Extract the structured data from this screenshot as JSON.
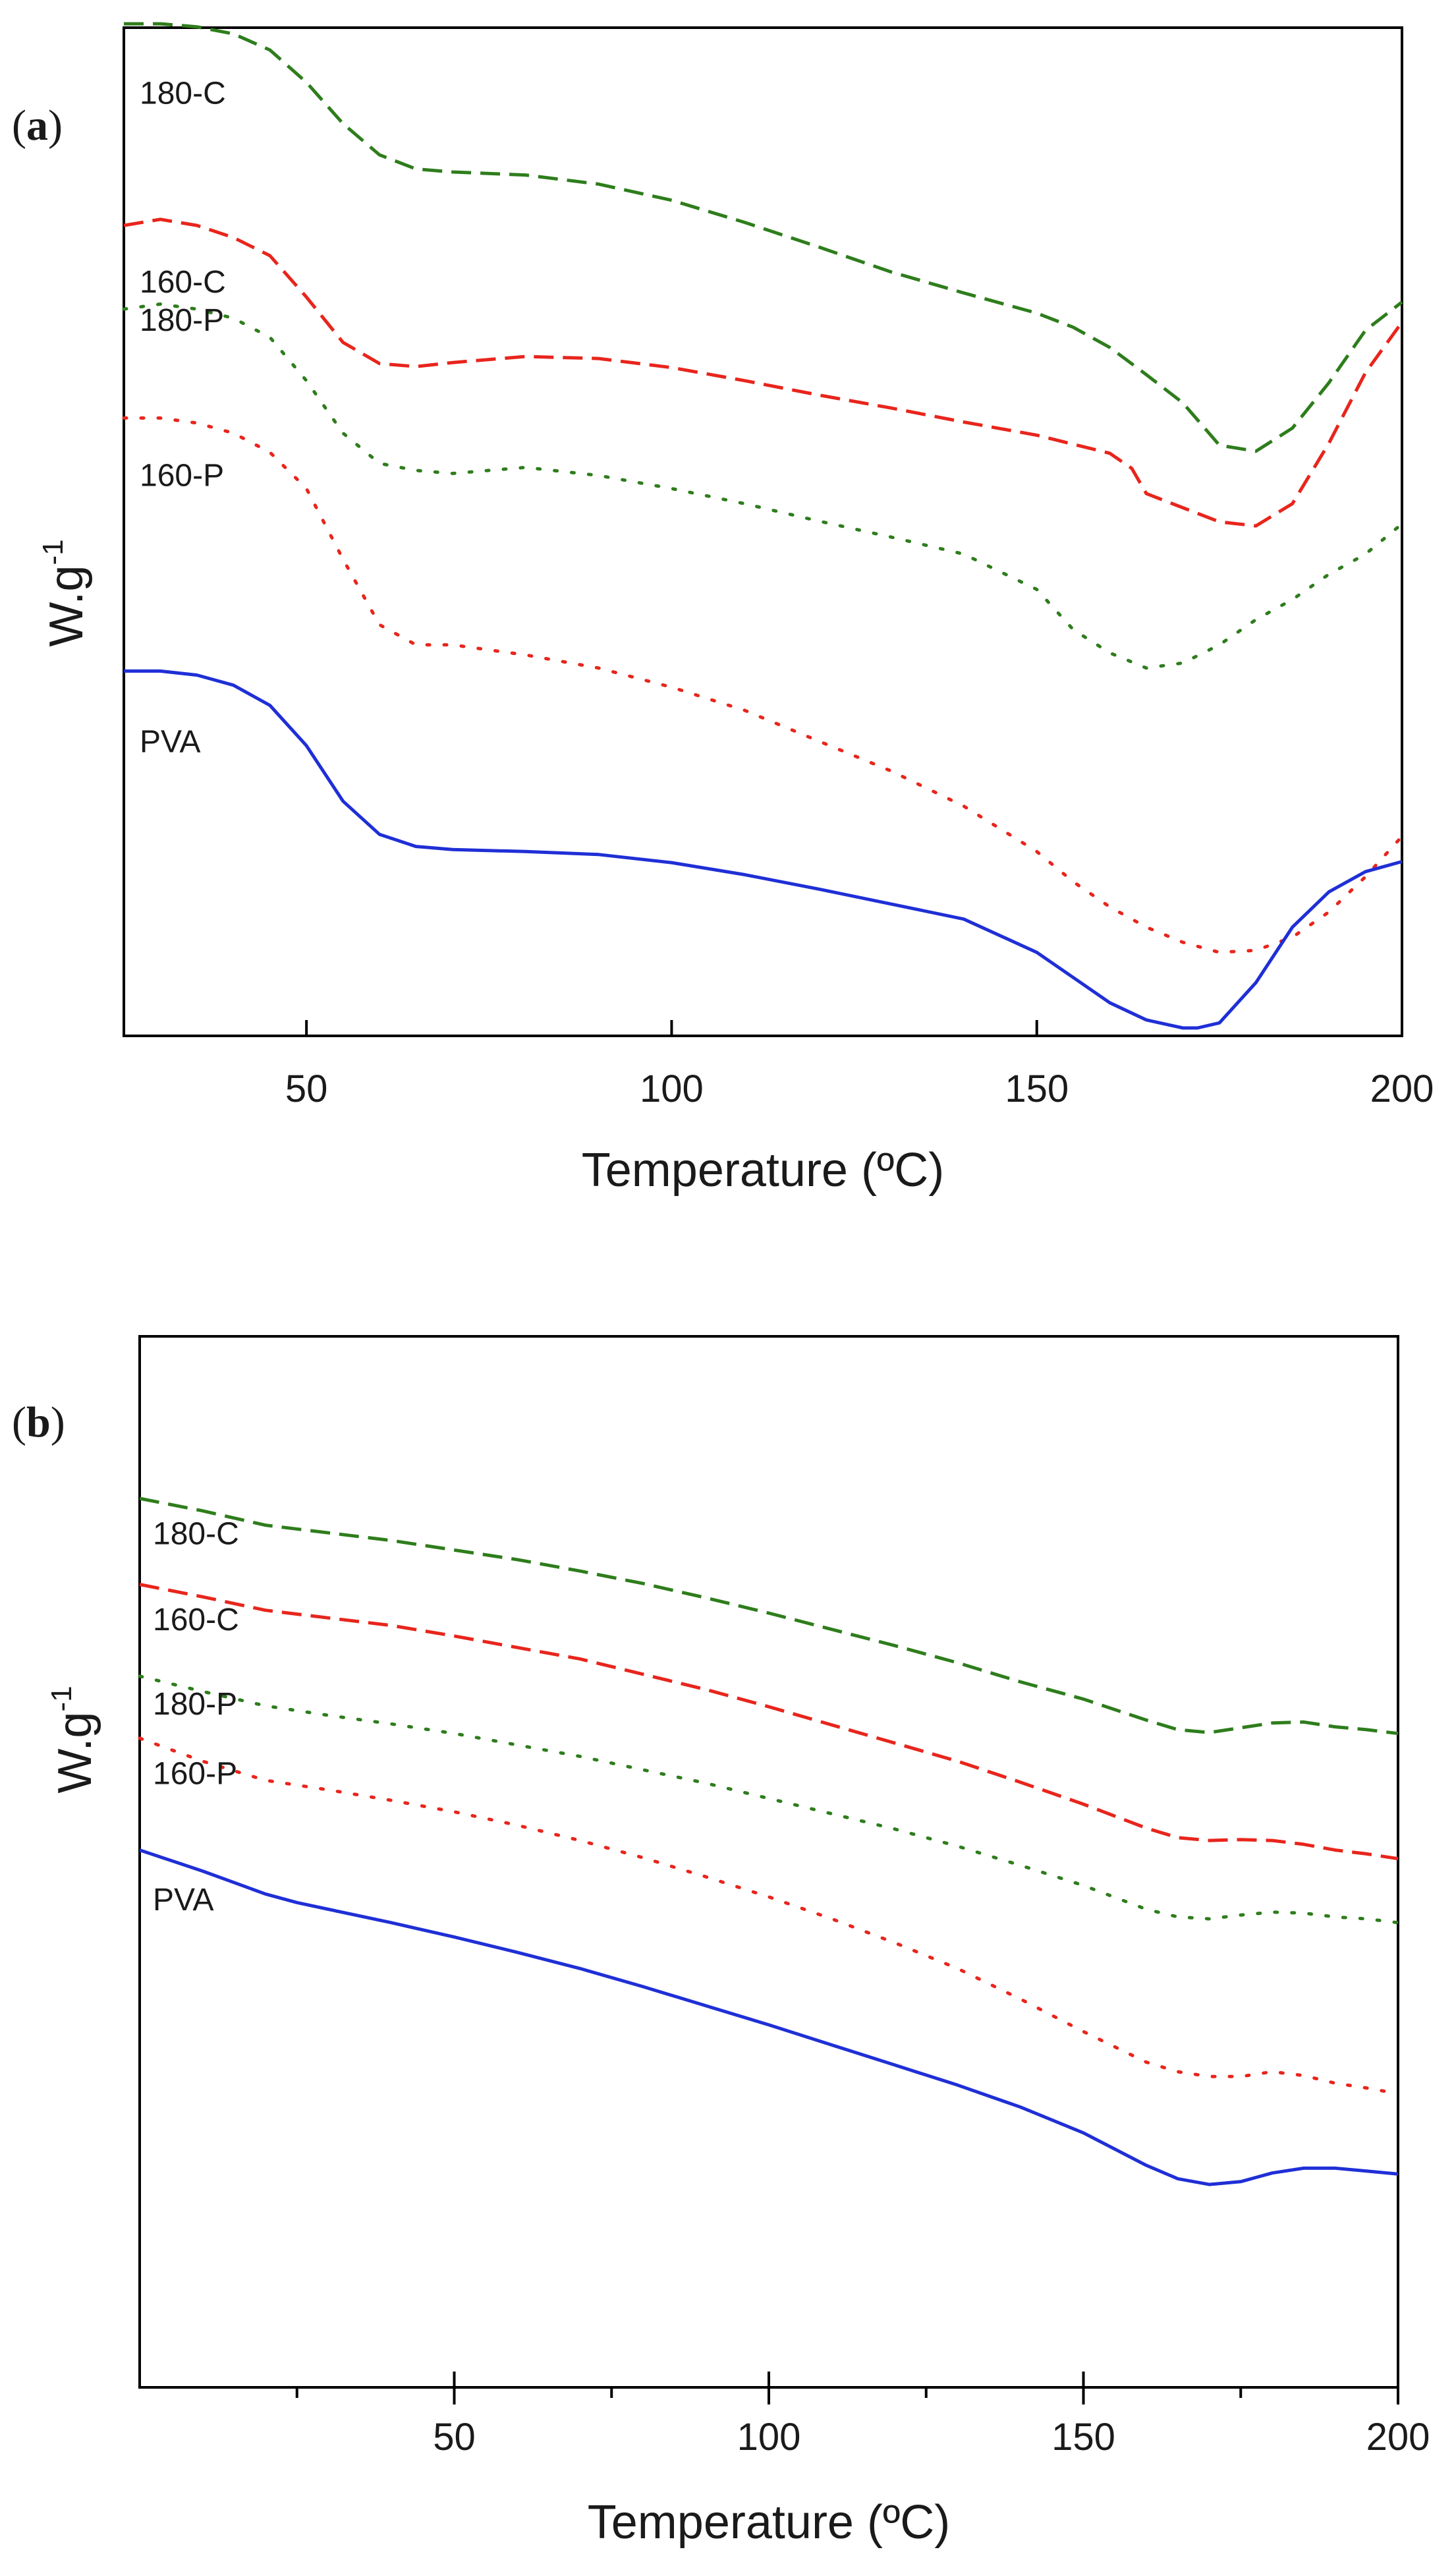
{
  "chart_data": [
    {
      "type": "line",
      "panel": "a",
      "panel_label": {
        "open": "(",
        "letter": "a",
        "close": ")"
      },
      "xlabel": "Temperature (ºC)",
      "ylabel": "W.g",
      "ylabel_sup": "-1",
      "xlim": [
        25,
        200
      ],
      "ylim": [
        0,
        100
      ],
      "xticks": [
        50,
        100,
        150,
        200
      ],
      "xtick_labels": [
        "50",
        "100",
        "150",
        "200"
      ],
      "grid": false,
      "legend": "inline labels at left",
      "series": [
        {
          "name": "180-C",
          "color": "#2e7d1c",
          "style": "dashed",
          "x": [
            25,
            30,
            35,
            40,
            45,
            50,
            55,
            60,
            65,
            70,
            80,
            90,
            100,
            110,
            120,
            130,
            140,
            150,
            155,
            160,
            165,
            170,
            175,
            180,
            185,
            190,
            195,
            200
          ],
          "y": [
            99.6,
            99.6,
            99.3,
            98.6,
            97.0,
            93.8,
            89.7,
            86.6,
            85.2,
            84.9,
            84.6,
            83.7,
            82.1,
            79.9,
            77.5,
            75.0,
            72.9,
            70.9,
            69.5,
            67.5,
            64.8,
            62.0,
            57.8,
            57.2,
            59.5,
            64.0,
            69.2,
            72.0
          ],
          "label_y": 92.7
        },
        {
          "name": "160-C",
          "color": "#e8251c",
          "style": "dashed",
          "x": [
            25,
            30,
            35,
            40,
            45,
            50,
            55,
            60,
            65,
            70,
            80,
            90,
            100,
            110,
            120,
            130,
            140,
            150,
            160,
            163,
            165,
            170,
            175,
            180,
            185,
            190,
            195,
            200
          ],
          "y": [
            79.6,
            80.2,
            79.6,
            78.4,
            76.6,
            72.5,
            68.0,
            65.9,
            65.6,
            66.0,
            66.6,
            66.4,
            65.5,
            64.2,
            62.8,
            61.5,
            60.1,
            58.8,
            57.0,
            55.5,
            53.0,
            51.6,
            50.2,
            49.8,
            52.0,
            58.0,
            65.0,
            70.0
          ],
          "label_y": 74.0
        },
        {
          "name": "180-P",
          "color": "#2e7d1c",
          "style": "dotted",
          "x": [
            25,
            30,
            35,
            40,
            45,
            50,
            55,
            60,
            65,
            70,
            75,
            80,
            90,
            100,
            110,
            120,
            130,
            140,
            150,
            155,
            160,
            165,
            170,
            175,
            180,
            185,
            190,
            195,
            200
          ],
          "y": [
            71.3,
            71.8,
            71.3,
            70.4,
            68.5,
            64.2,
            59.0,
            56.0,
            55.3,
            55.0,
            55.3,
            55.6,
            54.8,
            53.5,
            52.0,
            50.3,
            48.7,
            47.0,
            43.5,
            39.5,
            37.2,
            35.7,
            36.2,
            38.0,
            40.5,
            42.5,
            45.0,
            47.0,
            50.0
          ],
          "label_y": 70.2
        },
        {
          "name": "160-P",
          "color": "#e8251c",
          "style": "dotted",
          "x": [
            25,
            30,
            35,
            40,
            45,
            50,
            55,
            60,
            65,
            70,
            75,
            80,
            90,
            100,
            110,
            120,
            130,
            140,
            150,
            155,
            160,
            165,
            170,
            175,
            180,
            185,
            190,
            195,
            200
          ],
          "y": [
            60.5,
            60.5,
            60.0,
            59.0,
            57.1,
            53.5,
            46.5,
            40.0,
            38.0,
            38.0,
            37.5,
            37.0,
            35.7,
            33.8,
            31.5,
            28.5,
            25.5,
            22.0,
            17.5,
            14.5,
            12.0,
            10.0,
            8.5,
            7.5,
            7.7,
            9.0,
            11.5,
            15.0,
            19.0
          ],
          "label_y": 54.8
        },
        {
          "name": "PVA",
          "color": "#1f2fd6",
          "style": "solid",
          "x": [
            25,
            30,
            35,
            40,
            45,
            50,
            55,
            60,
            65,
            70,
            80,
            90,
            100,
            110,
            120,
            130,
            140,
            150,
            155,
            160,
            165,
            170,
            172,
            175,
            180,
            185,
            190,
            195,
            200
          ],
          "y": [
            35.4,
            35.4,
            35.0,
            34.0,
            32.0,
            28.0,
            22.5,
            19.2,
            18.0,
            17.7,
            17.5,
            17.2,
            16.4,
            15.2,
            13.8,
            12.3,
            10.8,
            7.5,
            5.0,
            2.5,
            0.8,
            0.0,
            0.0,
            0.5,
            4.5,
            10.0,
            13.5,
            15.5,
            16.5
          ],
          "label_y": 28.4
        }
      ]
    },
    {
      "type": "line",
      "panel": "b",
      "panel_label": {
        "open": "(",
        "letter": "b",
        "close": ")"
      },
      "xlabel": "Temperature (ºC)",
      "ylabel": "W.g",
      "ylabel_sup": "-1",
      "xlim": [
        0,
        200
      ],
      "ylim": [
        0,
        100
      ],
      "xticks": [
        50,
        100,
        150,
        200
      ],
      "xtick_labels": [
        "50",
        "100",
        "150",
        "200"
      ],
      "minor_xticks": [
        25,
        75,
        125,
        175
      ],
      "grid": false,
      "legend": "inline labels at left",
      "series": [
        {
          "name": "180-C",
          "color": "#2e7d1c",
          "style": "dashed",
          "x": [
            0,
            10,
            20,
            30,
            40,
            50,
            60,
            70,
            80,
            90,
            100,
            110,
            120,
            130,
            140,
            150,
            160,
            165,
            170,
            175,
            180,
            185,
            190,
            195,
            200
          ],
          "y": [
            88.0,
            86.7,
            85.2,
            84.4,
            83.6,
            82.6,
            81.6,
            80.4,
            79.1,
            77.6,
            76.0,
            74.3,
            72.6,
            70.8,
            68.8,
            67.0,
            64.8,
            63.8,
            63.5,
            64.0,
            64.5,
            64.6,
            64.1,
            63.8,
            63.4
          ],
          "label_y": 84.3
        },
        {
          "name": "160-C",
          "color": "#e8251c",
          "style": "dashed",
          "x": [
            0,
            10,
            20,
            30,
            40,
            50,
            60,
            70,
            80,
            90,
            100,
            110,
            120,
            130,
            140,
            150,
            160,
            165,
            170,
            175,
            180,
            185,
            190,
            195,
            200
          ],
          "y": [
            79.0,
            77.7,
            76.3,
            75.5,
            74.7,
            73.6,
            72.4,
            71.2,
            69.6,
            68.0,
            66.2,
            64.3,
            62.4,
            60.5,
            58.3,
            56.0,
            53.5,
            52.5,
            52.2,
            52.3,
            52.2,
            51.8,
            51.2,
            50.8,
            50.3
          ],
          "label_y": 75.3
        },
        {
          "name": "180-P",
          "color": "#2e7d1c",
          "style": "dotted",
          "x": [
            0,
            10,
            20,
            30,
            40,
            50,
            60,
            70,
            80,
            90,
            100,
            110,
            120,
            130,
            140,
            150,
            160,
            165,
            170,
            175,
            180,
            185,
            190,
            195,
            200
          ],
          "y": [
            69.4,
            67.8,
            66.3,
            65.3,
            64.4,
            63.4,
            62.2,
            61.0,
            59.6,
            58.2,
            56.6,
            55.0,
            53.4,
            51.6,
            49.6,
            47.5,
            45.0,
            44.2,
            44.0,
            44.4,
            44.7,
            44.6,
            44.2,
            44.0,
            43.6
          ],
          "label_y": 66.5
        },
        {
          "name": "160-P",
          "color": "#e8251c",
          "style": "dotted",
          "x": [
            0,
            10,
            20,
            30,
            40,
            50,
            60,
            70,
            80,
            90,
            100,
            110,
            120,
            130,
            140,
            150,
            160,
            165,
            170,
            175,
            180,
            185,
            190,
            195,
            200
          ],
          "y": [
            62.9,
            60.5,
            58.5,
            57.5,
            56.4,
            55.2,
            53.8,
            52.2,
            50.4,
            48.4,
            46.3,
            44.0,
            41.5,
            38.8,
            35.6,
            32.2,
            29.0,
            28.0,
            27.5,
            27.5,
            28.0,
            27.6,
            26.8,
            26.3,
            25.7
          ],
          "label_y": 59.2
        },
        {
          "name": "PVA",
          "color": "#1f2fd6",
          "style": "solid",
          "x": [
            0,
            10,
            20,
            25,
            30,
            40,
            50,
            60,
            70,
            80,
            90,
            100,
            110,
            120,
            130,
            140,
            150,
            160,
            165,
            170,
            175,
            180,
            185,
            190,
            195,
            200
          ],
          "y": [
            51.2,
            49.0,
            46.6,
            45.7,
            45.0,
            43.6,
            42.1,
            40.5,
            38.8,
            36.9,
            34.9,
            32.9,
            30.8,
            28.7,
            26.6,
            24.3,
            21.6,
            18.2,
            16.8,
            16.2,
            16.5,
            17.4,
            17.9,
            17.9,
            17.6,
            17.3
          ],
          "label_y": 46.0
        }
      ]
    }
  ]
}
